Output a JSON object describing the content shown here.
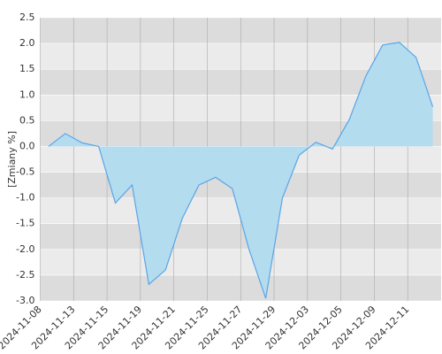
{
  "chart_data": {
    "type": "area",
    "y_label": "[Zmiany %]",
    "categories": [
      "2024-11-08",
      null,
      "2024-11-13",
      null,
      "2024-11-15",
      null,
      "2024-11-19",
      null,
      "2024-11-21",
      null,
      "2024-11-25",
      null,
      "2024-11-27",
      null,
      "2024-11-29",
      null,
      "2024-12-03",
      null,
      "2024-12-05",
      null,
      "2024-12-09",
      null,
      "2024-12-11",
      null
    ],
    "series": [
      {
        "color": "#5aa5e6",
        "fill": "#b3dcef",
        "values": [
          0.0,
          0.25,
          0.07,
          0.0,
          -1.1,
          -0.75,
          -2.68,
          -2.4,
          -1.4,
          -0.75,
          -0.6,
          -0.82,
          -2.0,
          -2.95,
          -1.0,
          -0.17,
          0.08,
          -0.05,
          0.52,
          1.37,
          1.97,
          2.02,
          1.73,
          0.77
        ]
      }
    ],
    "ylim": [
      -3,
      2.5
    ],
    "yticks": [
      {
        "value": -3,
        "label": "-3.0"
      },
      {
        "value": -2.5,
        "label": "-2.5"
      },
      {
        "value": -2,
        "label": "-2.0"
      },
      {
        "value": -1.5,
        "label": "-1.5"
      },
      {
        "value": -1,
        "label": "-1.0"
      },
      {
        "value": -0.5,
        "label": "-0.5"
      },
      {
        "value": 0,
        "label": "0.0"
      },
      {
        "value": 0.5,
        "label": "0.5"
      },
      {
        "value": 1,
        "label": "1.0"
      },
      {
        "value": 1.5,
        "label": "1.5"
      },
      {
        "value": 2,
        "label": "2.0"
      },
      {
        "value": 2.5,
        "label": "2.5"
      }
    ],
    "grid": true
  }
}
